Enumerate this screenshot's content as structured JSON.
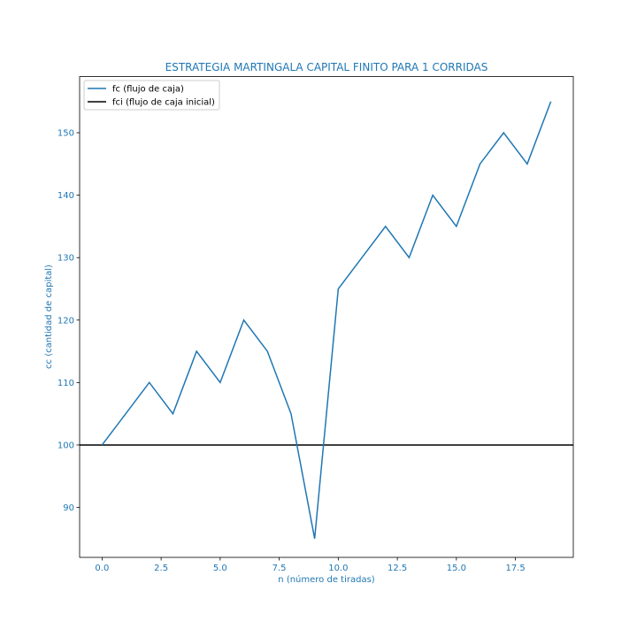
{
  "colors": {
    "label": "#1f77b4",
    "series_fc": "#1f77b4",
    "series_fci": "#000000",
    "frame": "#000000",
    "legend_border": "#cccccc",
    "background": "#ffffff"
  },
  "chart_data": {
    "type": "line",
    "title": "ESTRATEGIA MARTINGALA CAPITAL FINITO PARA 1 CORRIDAS",
    "xlabel": "n (número de tiradas)",
    "ylabel": "cc (cantidad de capital)",
    "xlim": [
      -0.95,
      19.95
    ],
    "ylim": [
      82,
      159
    ],
    "xticks": [
      0.0,
      2.5,
      5.0,
      7.5,
      10.0,
      12.5,
      15.0,
      17.5
    ],
    "xtick_labels": [
      "0.0",
      "2.5",
      "5.0",
      "7.5",
      "10.0",
      "12.5",
      "15.0",
      "17.5"
    ],
    "yticks": [
      90,
      100,
      110,
      120,
      130,
      140,
      150
    ],
    "ytick_labels": [
      "90",
      "100",
      "110",
      "120",
      "130",
      "140",
      "150"
    ],
    "grid": false,
    "legend_position": "top-left",
    "series": [
      {
        "name": "fc (flujo de caja)",
        "x": [
          0,
          1,
          2,
          3,
          4,
          5,
          6,
          7,
          8,
          9,
          10,
          11,
          12,
          13,
          14,
          15,
          16,
          17,
          18,
          19
        ],
        "values": [
          100,
          105,
          110,
          105,
          115,
          110,
          120,
          115,
          105,
          85,
          125,
          130,
          135,
          130,
          140,
          135,
          145,
          150,
          145,
          155
        ]
      },
      {
        "name": "fci (flujo de caja inicial)",
        "type": "hline",
        "y": 100
      }
    ]
  }
}
